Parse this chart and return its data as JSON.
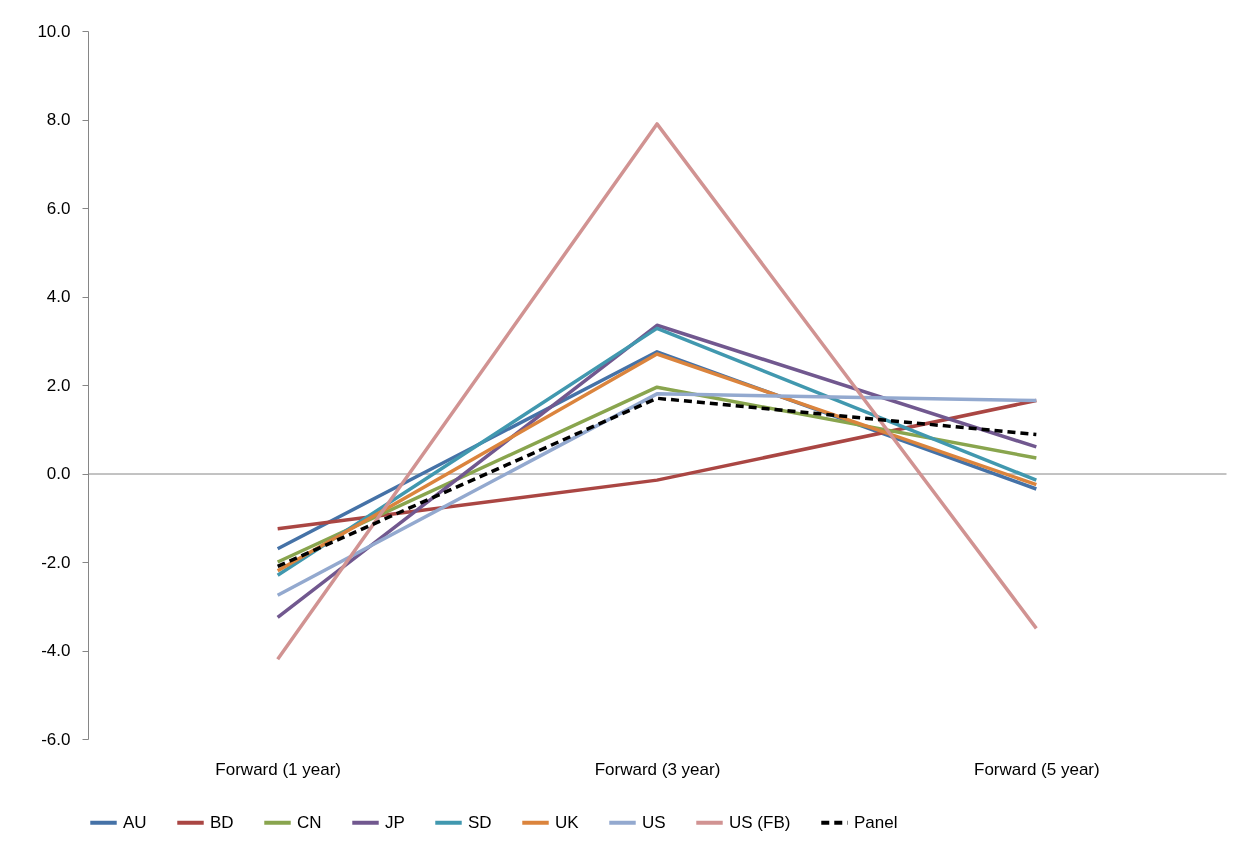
{
  "chart_data": {
    "type": "line",
    "categories": [
      "Forward (1 year)",
      "Forward (3 year)",
      "Forward (5 year)"
    ],
    "ylim": [
      -6,
      10
    ],
    "yticks": [
      {
        "value": -6,
        "label": "-6.0"
      },
      {
        "value": -4,
        "label": "-4.0"
      },
      {
        "value": -2,
        "label": "-2.0"
      },
      {
        "value": 0,
        "label": "0.0"
      },
      {
        "value": 2,
        "label": "2.0"
      },
      {
        "value": 4,
        "label": "4.0"
      },
      {
        "value": 6,
        "label": "6.0"
      },
      {
        "value": 8,
        "label": "8.0"
      },
      {
        "value": 10,
        "label": "10.0"
      }
    ],
    "legend": "bottom",
    "marker": "none",
    "series": [
      {
        "name": "AU",
        "color": "#4572a7",
        "values": [
          -1.7,
          2.75,
          -0.35
        ]
      },
      {
        "name": "BD",
        "color": "#aa4643",
        "values": [
          -1.25,
          -0.15,
          1.65
        ]
      },
      {
        "name": "CN",
        "color": "#89a54e",
        "values": [
          -2.0,
          1.95,
          0.35
        ]
      },
      {
        "name": "JP",
        "color": "#71588f",
        "values": [
          -3.25,
          3.35,
          0.6
        ]
      },
      {
        "name": "SD",
        "color": "#4198af",
        "values": [
          -2.3,
          3.28,
          -0.15
        ]
      },
      {
        "name": "UK",
        "color": "#db843d",
        "values": [
          -2.2,
          2.7,
          -0.25
        ]
      },
      {
        "name": "US",
        "color": "#93a9cf",
        "values": [
          -2.75,
          1.8,
          1.65
        ]
      },
      {
        "name": "US (FB)",
        "color": "#d19392",
        "values": [
          -4.2,
          7.9,
          -3.5
        ]
      },
      {
        "name": "Panel",
        "color": "#000000",
        "line_style": "dashed",
        "values": [
          -2.1,
          1.7,
          0.88
        ]
      }
    ]
  }
}
